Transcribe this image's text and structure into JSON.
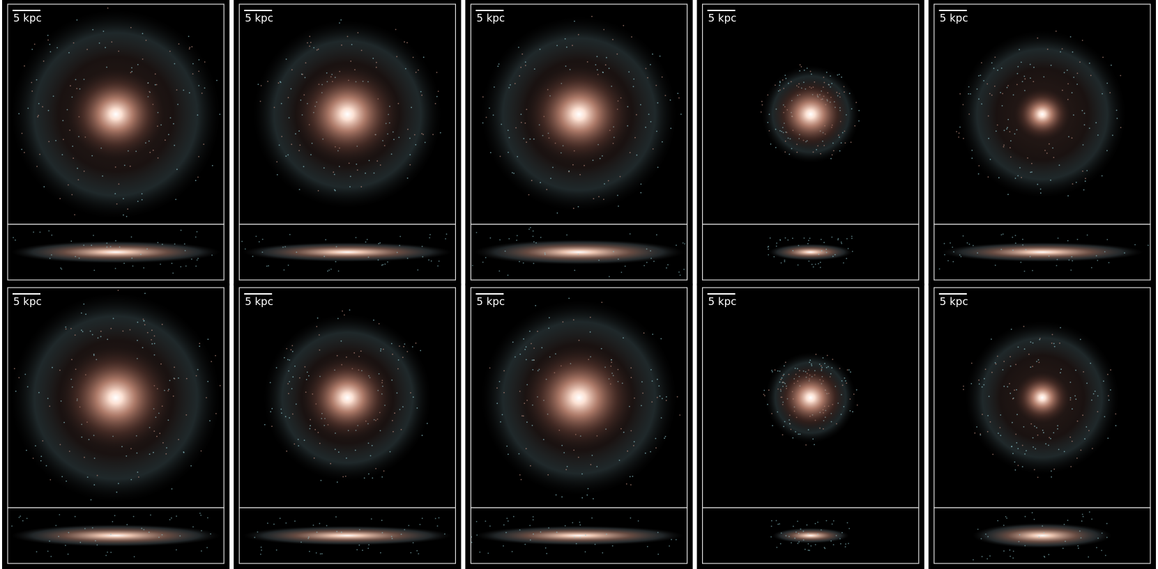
{
  "panels": [
    {
      "scale_label": "5 kpc"
    },
    {
      "scale_label": "5 kpc"
    },
    {
      "scale_label": "5 kpc"
    },
    {
      "scale_label": "5 kpc"
    },
    {
      "scale_label": "5 kpc"
    },
    {
      "scale_label": "5 kpc"
    },
    {
      "scale_label": "5 kpc"
    },
    {
      "scale_label": "5 kpc"
    },
    {
      "scale_label": "5 kpc"
    },
    {
      "scale_label": "5 kpc"
    }
  ]
}
